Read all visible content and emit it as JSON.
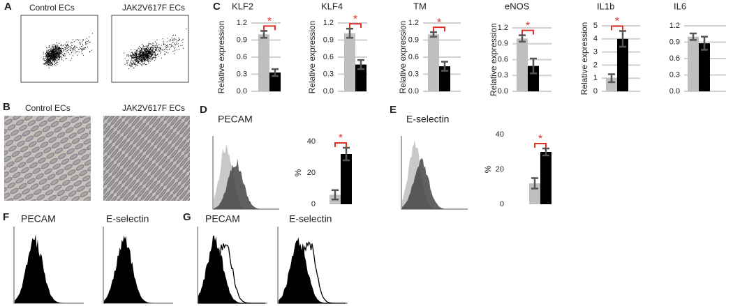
{
  "panels": [
    {
      "label": "A",
      "captions": [
        "Control ECs",
        "JAK2V617F ECs"
      ]
    },
    {
      "label": "B",
      "captions": [
        "Control ECs",
        "JAK2V617F ECs"
      ]
    },
    {
      "label": "C"
    },
    {
      "label": "D",
      "captions": [
        "PECAM"
      ]
    },
    {
      "label": "E",
      "captions": [
        "E-selectin"
      ]
    },
    {
      "label": "F",
      "captions": [
        "PECAM",
        "E-selectin"
      ]
    },
    {
      "label": "G",
      "captions": [
        "PECAM",
        "E-selectin"
      ]
    }
  ],
  "chart_data": [
    {
      "type": "bar",
      "title": "KLF2",
      "ylabel": "Relative expression",
      "values": [
        1.0,
        0.33
      ],
      "errors": [
        0.06,
        0.06
      ],
      "colors": [
        "#bfbfbf",
        "#000000"
      ],
      "ylim": [
        0,
        1.2
      ],
      "yticks": [
        {
          "value": 0,
          "label": "0.0"
        },
        0.3,
        0.6,
        0.9,
        1.2
      ],
      "grid": true,
      "annotation": "*"
    },
    {
      "type": "bar",
      "title": "KLF4",
      "ylabel": "Relative expression",
      "values": [
        1.02,
        0.47
      ],
      "errors": [
        0.08,
        0.08
      ],
      "colors": [
        "#bfbfbf",
        "#000000"
      ],
      "ylim": [
        0,
        1.2
      ],
      "yticks": [
        {
          "value": 0,
          "label": "0.0"
        },
        0.3,
        0.6,
        0.9,
        1.2
      ],
      "grid": true,
      "annotation": "*"
    },
    {
      "type": "bar",
      "title": "TM",
      "ylabel": "Relative expression",
      "values": [
        1.0,
        0.44
      ],
      "errors": [
        0.04,
        0.08
      ],
      "colors": [
        "#bfbfbf",
        "#000000"
      ],
      "ylim": [
        0,
        1.2
      ],
      "yticks": [
        {
          "value": 0,
          "label": "0.0"
        },
        0.3,
        0.6,
        0.9,
        1.2
      ],
      "grid": true,
      "annotation": "*"
    },
    {
      "type": "bar",
      "title": "eNOS",
      "ylabel": "Relative expression",
      "values": [
        1.0,
        0.48
      ],
      "errors": [
        0.06,
        0.14
      ],
      "colors": [
        "#bfbfbf",
        "#000000"
      ],
      "ylim": [
        0,
        1.2
      ],
      "yticks": [
        {
          "value": 0,
          "label": "0.0"
        },
        0.3,
        0.6,
        0.9,
        1.2
      ],
      "grid": true,
      "annotation": "*"
    },
    {
      "type": "bar",
      "title": "IL1b",
      "ylabel": "Relative expression",
      "values": [
        1.0,
        4.0
      ],
      "errors": [
        0.3,
        0.6
      ],
      "colors": [
        "#bfbfbf",
        "#000000"
      ],
      "ylim": [
        0,
        5
      ],
      "yticks": [
        0,
        1,
        2,
        3,
        4,
        5
      ],
      "grid": true,
      "annotation": "*"
    },
    {
      "type": "bar",
      "title": "IL6",
      "values": [
        1.0,
        0.88
      ],
      "errors": [
        0.06,
        0.12
      ],
      "colors": [
        "#bfbfbf",
        "#000000"
      ],
      "ylim": [
        0,
        1.2
      ],
      "yticks": [
        {
          "value": 0,
          "label": "0.0"
        },
        0.3,
        0.6,
        0.9,
        1.2
      ],
      "grid": true
    },
    {
      "type": "bar",
      "ylabel": "%",
      "values": [
        6,
        32
      ],
      "errors": [
        3,
        4
      ],
      "colors": [
        "#bfbfbf",
        "#000000"
      ],
      "ylim": [
        0,
        40
      ],
      "yticks": [
        0,
        20,
        40
      ],
      "grid": false,
      "annotation": "*"
    },
    {
      "type": "bar",
      "ylabel": "%",
      "values": [
        12,
        30
      ],
      "errors": [
        3,
        2
      ],
      "colors": [
        "#bfbfbf",
        "#000000"
      ],
      "ylim": [
        0,
        40
      ],
      "yticks": [
        0,
        20,
        40
      ],
      "grid": false,
      "annotation": "*"
    }
  ]
}
